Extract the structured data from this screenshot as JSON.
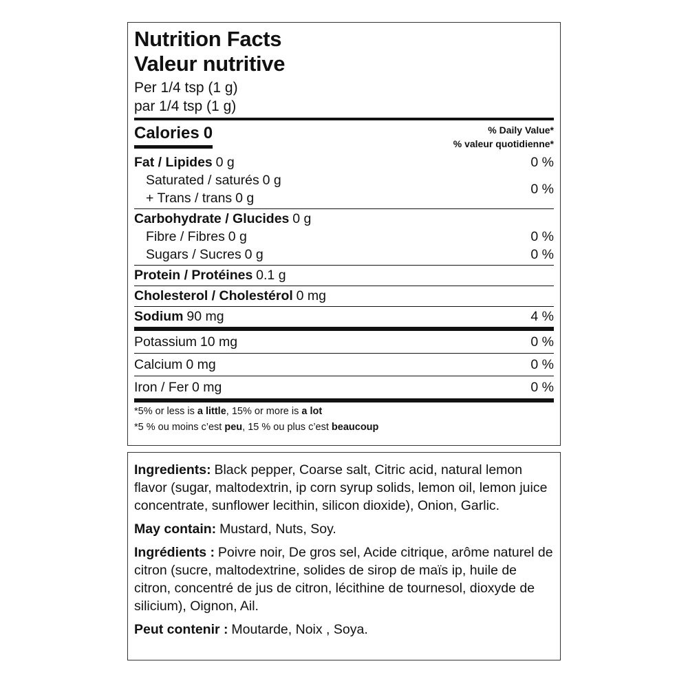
{
  "nutrition_facts": {
    "title_en": "Nutrition Facts",
    "title_fr": "Valeur nutritive",
    "serving_en": "Per 1/4 tsp (1 g)",
    "serving_fr": "par 1/4 tsp (1 g)",
    "calories_label": "Calories",
    "calories_value": "0",
    "dv_header_en": "% Daily Value*",
    "dv_header_fr": "% valeur quotidienne*",
    "sections": [
      {
        "items": [
          {
            "name": "Fat / Lipides",
            "amount": "0 g",
            "dv": "0 %"
          },
          {
            "lines": [
              {
                "name": "Saturated / saturés",
                "amount": "0 g"
              },
              {
                "name": "+ Trans / trans",
                "amount": "0 g"
              }
            ],
            "dv": "0 %"
          }
        ]
      },
      {
        "items": [
          {
            "name": "Carbohydrate / Glucides",
            "amount": "0 g"
          },
          {
            "name": "Fibre / Fibres",
            "amount": "0 g",
            "dv": "0 %"
          },
          {
            "name": "Sugars / Sucres",
            "amount": "0 g",
            "dv": "0 %"
          }
        ]
      },
      {
        "items": [
          {
            "name": "Protein / Protéines",
            "amount": "0.1 g"
          }
        ]
      },
      {
        "items": [
          {
            "name": "Cholesterol / Cholestérol",
            "amount": "0 mg"
          }
        ]
      },
      {
        "items": [
          {
            "name": "Sodium",
            "amount": "90 mg",
            "dv": "4 %"
          }
        ]
      },
      {
        "items": [
          {
            "name": "Potassium",
            "amount": "10 mg",
            "dv": "0 %"
          }
        ]
      },
      {
        "items": [
          {
            "name": "Calcium",
            "amount": "0 mg",
            "dv": "0 %"
          }
        ]
      },
      {
        "items": [
          {
            "name": "Iron / Fer",
            "amount": "0 mg",
            "dv": "0 %"
          }
        ]
      }
    ],
    "footnote_en": [
      "*5% or less is ",
      "a little",
      ", 15% or more is ",
      "a lot"
    ],
    "footnote_fr": [
      "*5 % ou moins c’est ",
      "peu",
      ", 15 % ou plus c’est ",
      "beaucoup"
    ]
  },
  "ingredients": [
    {
      "label": "Ingredients:",
      "text": "Black pepper, Coarse salt, Citric acid, natural lemon flavor (sugar, maltodextrin, ip corn syrup solids, lemon oil, lemon juice concentrate, sunflower lecithin, silicon dioxide), Onion, Garlic."
    },
    {
      "label": "May contain:",
      "text": "Mustard, Nuts, Soy."
    },
    {
      "label": "Ingrédients :",
      "text": "Poivre noir, De gros sel, Acide citrique, arôme naturel de citron (sucre, maltodextrine, solides de sirop de maïs ip, huile de citron, concentré de jus de citron, lécithine de tournesol, dioxyde de silicium), Oignon, Ail."
    },
    {
      "label": "Peut contenir :",
      "text": "Moutarde, Noix , Soya."
    }
  ]
}
